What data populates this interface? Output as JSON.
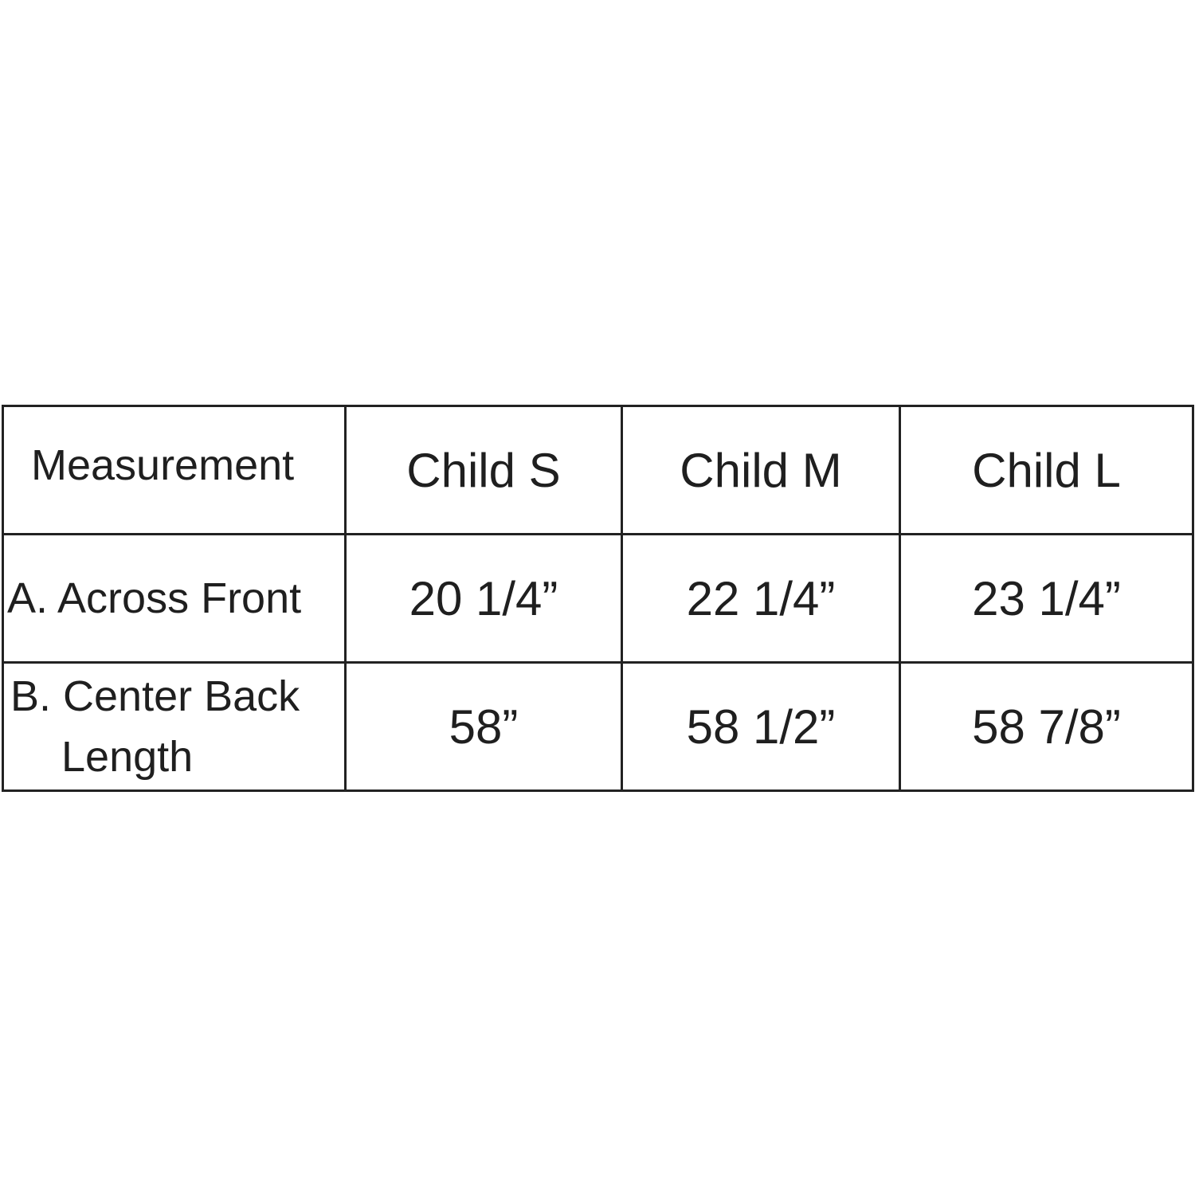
{
  "table": {
    "headers": [
      "Measurement",
      "Child S",
      "Child M",
      "Child L"
    ],
    "rows": [
      {
        "label": "A. Across Front",
        "values": [
          "20 1/4”",
          "22 1/4”",
          "23 1/4”"
        ]
      },
      {
        "label_lines": [
          "B. Center Back",
          "Length"
        ],
        "values": [
          "58”",
          "58 1/2”",
          "58 7/8”"
        ]
      }
    ]
  }
}
